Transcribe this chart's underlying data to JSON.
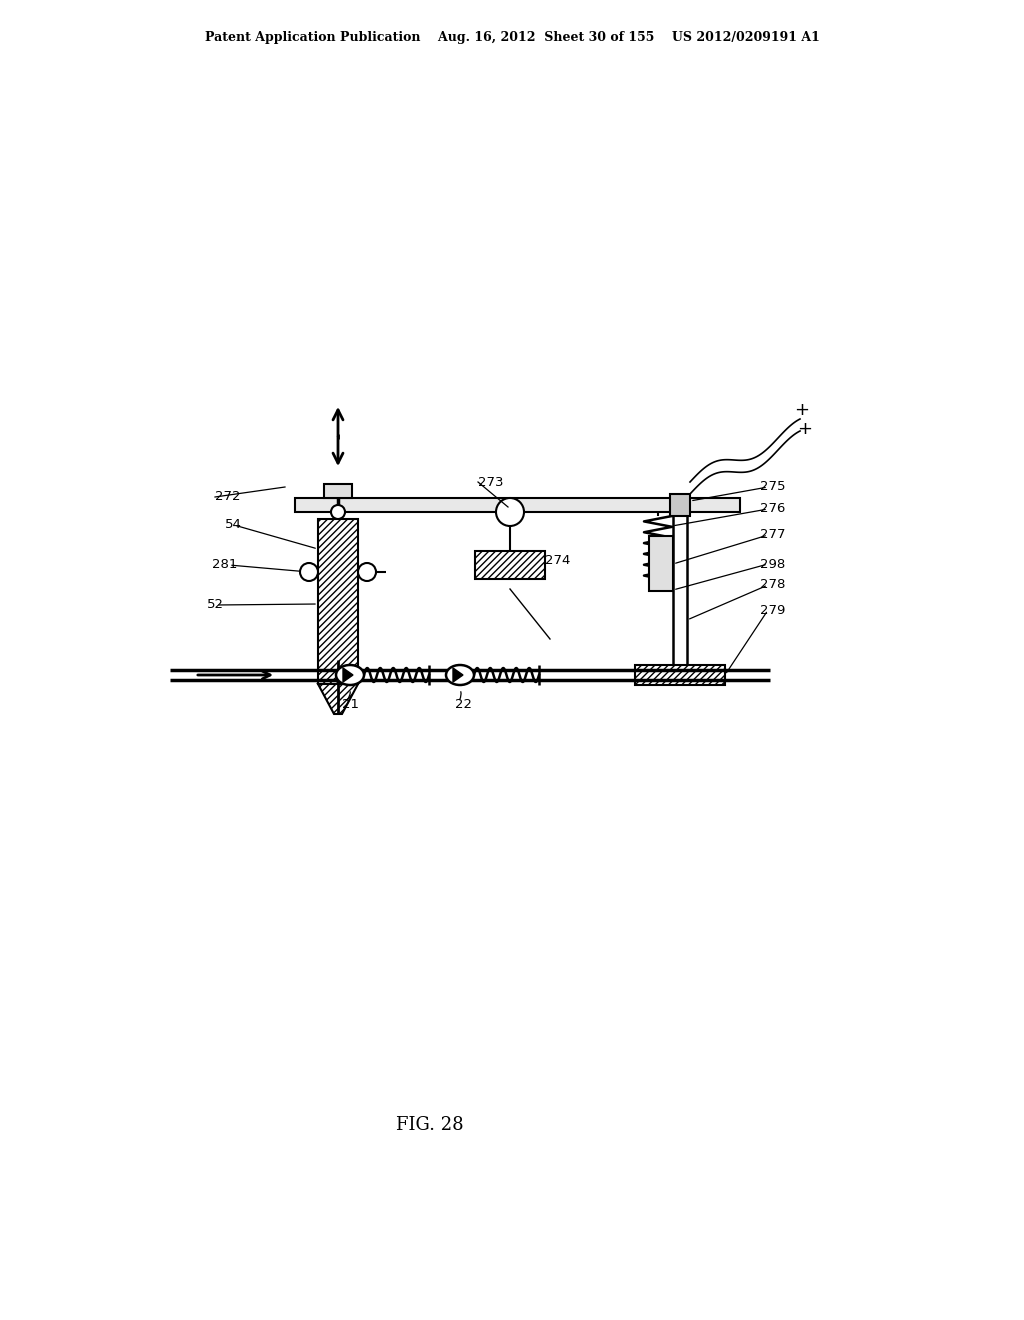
{
  "bg_color": "#ffffff",
  "header": "Patent Application Publication    Aug. 16, 2012  Sheet 30 of 155    US 2012/0209191 A1",
  "fig_label": "FIG. 28",
  "black": "#000000",
  "gray": "#888888",
  "hatch_gray": "#cccccc",
  "label_fs": 9.5,
  "header_fs": 9,
  "fig_fs": 13
}
